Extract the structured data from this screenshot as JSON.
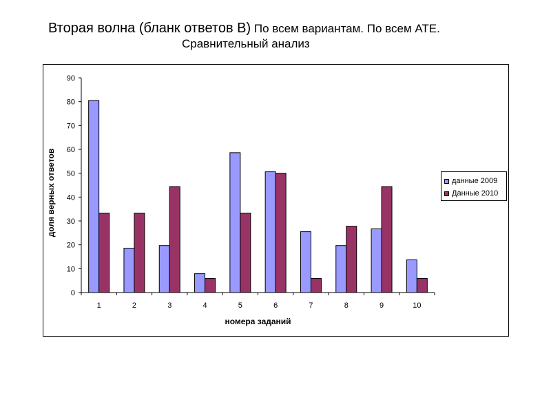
{
  "title": {
    "main": "Вторая волна (бланк ответов В)",
    "rest": " По всем вариантам. По всем АТЕ.",
    "subtitle": "Сравнительный анализ"
  },
  "chart_data": {
    "type": "bar",
    "xlabel": "номера заданий",
    "ylabel": "доля верных ответов",
    "ylim": [
      0,
      90
    ],
    "yticks": [
      0,
      10,
      20,
      30,
      40,
      50,
      60,
      70,
      80,
      90
    ],
    "categories": [
      "1",
      "2",
      "3",
      "4",
      "5",
      "6",
      "7",
      "8",
      "9",
      "10"
    ],
    "series": [
      {
        "name": "данные 2009",
        "color": "#9999ff",
        "values": [
          80.5,
          18.6,
          19.7,
          7.9,
          58.6,
          50.6,
          25.5,
          19.7,
          26.7,
          13.7
        ]
      },
      {
        "name": "Данные 2010",
        "color": "#993366",
        "values": [
          33.3,
          33.3,
          44.4,
          5.9,
          33.3,
          50.0,
          5.9,
          27.8,
          44.4,
          5.9
        ]
      }
    ],
    "legend_position": "right",
    "grid": false
  }
}
